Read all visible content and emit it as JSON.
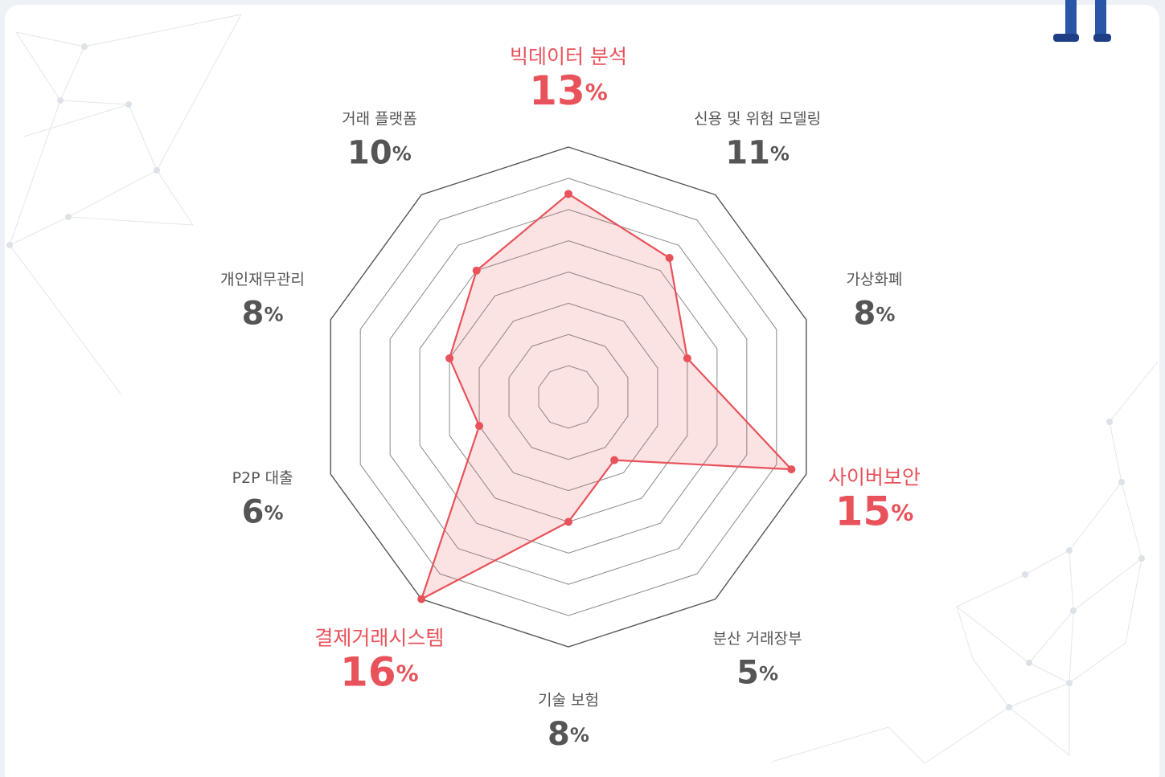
{
  "chart_data": {
    "type": "radar",
    "categories": [
      "빅데이터 분석",
      "신용 및 위험 모델링",
      "가상화폐",
      "사이버보안",
      "분산 거래장부",
      "기술 보험",
      "결제거래시스템",
      "P2P 대출",
      "개인재무관리",
      "거래 플랫폼"
    ],
    "values": [
      13,
      11,
      8,
      15,
      5,
      8,
      16,
      6,
      8,
      10
    ],
    "value_labels": [
      "13%",
      "11%",
      "8%",
      "15%",
      "5%",
      "8%",
      "16%",
      "6%",
      "8%",
      "10%"
    ],
    "color": "#e8525a",
    "ylim": [
      0,
      16
    ],
    "yticks": [
      2,
      4,
      6,
      8,
      10,
      12,
      14,
      16
    ],
    "grid": true,
    "highlight": [
      0,
      3,
      6
    ]
  }
}
